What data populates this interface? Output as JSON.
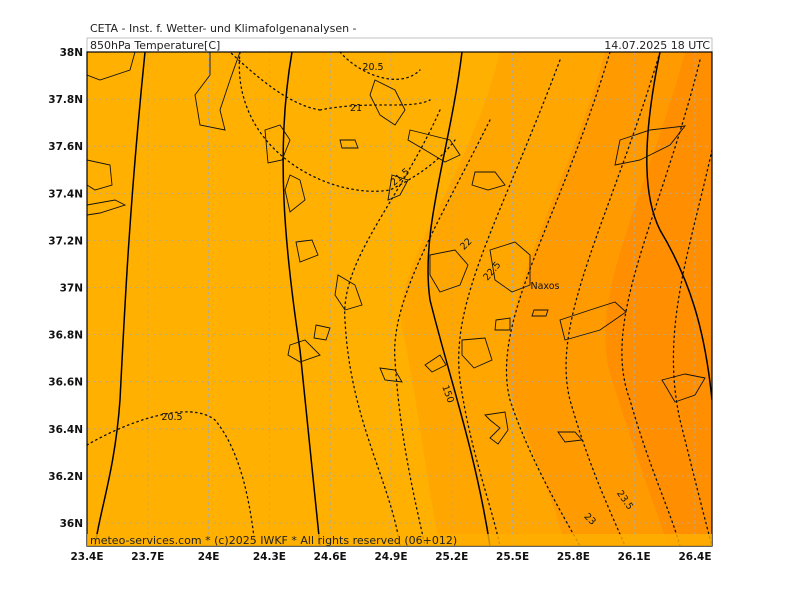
{
  "header": {
    "title": "CETA - Inst. f. Wetter- und Klimafolgenanalysen -",
    "field": "850hPa Temperature[C]",
    "valid_time": "14.07.2025 18 UTC"
  },
  "map": {
    "lat_labels": [
      "38N",
      "37.8N",
      "37.6N",
      "37.4N",
      "37.2N",
      "37N",
      "36.8N",
      "36.6N",
      "36.4N",
      "36.2N",
      "36N"
    ],
    "lon_labels": [
      "23.4E",
      "23.7E",
      "24E",
      "24.3E",
      "24.6E",
      "24.9E",
      "25.2E",
      "25.5E",
      "25.8E",
      "26.1E",
      "26.4E"
    ],
    "contour_labels": [
      "20.5",
      "21",
      "21.5",
      "22",
      "22.5",
      "150",
      "20.5",
      "23",
      "23.5"
    ],
    "place_labels": [
      "Naxos"
    ]
  },
  "footer": "meteo-services.com * (c)2025 IWKF * All rights reserved (06+012)"
}
